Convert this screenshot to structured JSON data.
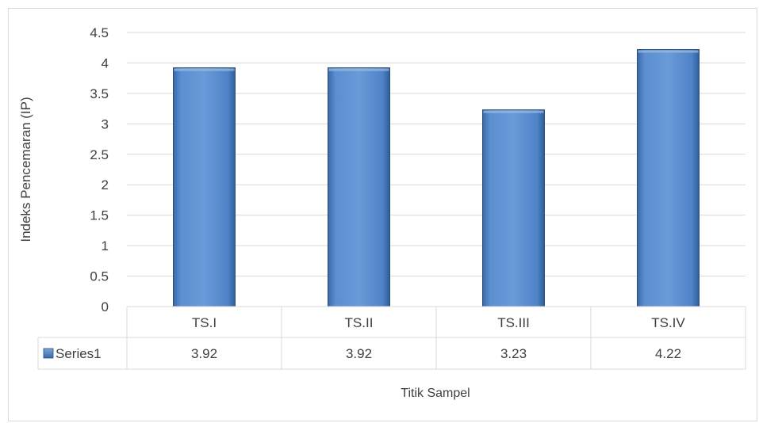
{
  "chart_data": {
    "type": "bar",
    "title": "",
    "xlabel": "Titik Sampel",
    "ylabel": "Indeks Pencemaran (IP)",
    "ylim": [
      0,
      4.5
    ],
    "yticks": [
      "0",
      "0.5",
      "1",
      "1.5",
      "2",
      "2.5",
      "3",
      "3.5",
      "4",
      "4.5"
    ],
    "categories": [
      "TS.I",
      "TS.II",
      "TS.III",
      "TS.IV"
    ],
    "series": [
      {
        "name": "Series1",
        "values": [
          3.92,
          3.92,
          3.23,
          4.22
        ],
        "value_labels": [
          "3.92",
          "3.92",
          "3.23",
          "4.22"
        ],
        "color": "#4f81bd"
      }
    ],
    "data_table": true,
    "grid": true,
    "legend": "data-table"
  }
}
